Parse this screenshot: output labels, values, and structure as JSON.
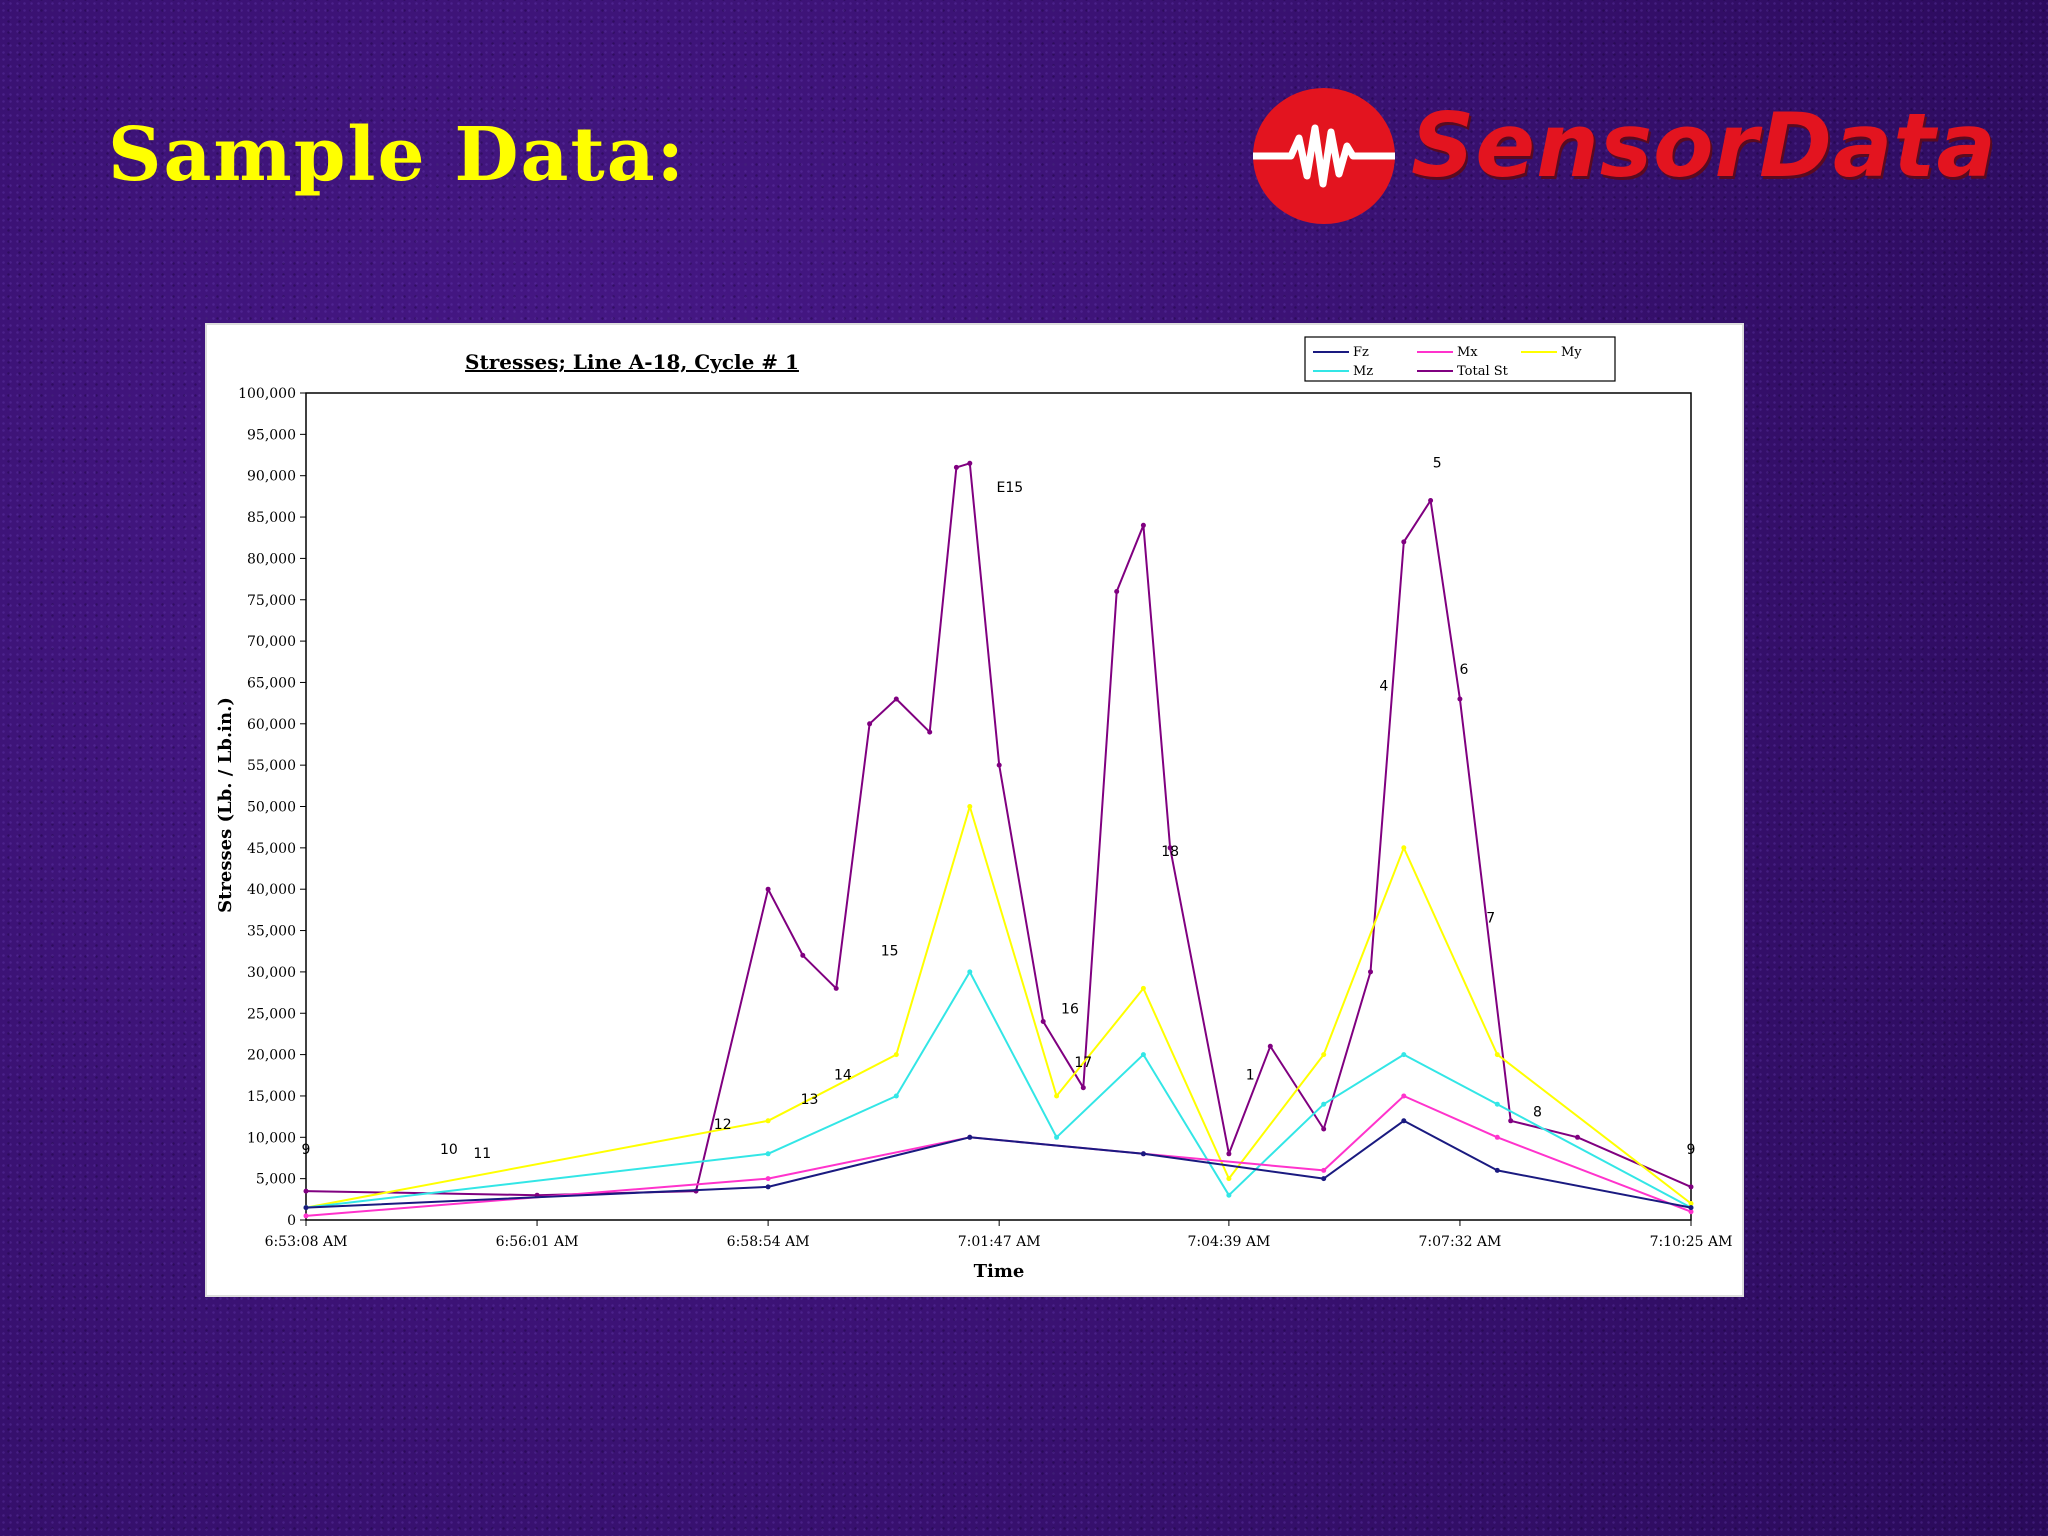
{
  "slide": {
    "title": "Sample Data:"
  },
  "logo": {
    "text": "SensorData",
    "color": "#e3141f"
  },
  "chart_data": {
    "type": "line",
    "title": "Stresses; Line A-18, Cycle # 1",
    "xlabel": "Time",
    "ylabel": "Stresses (Lb. / Lb.in.)",
    "ylim": [
      0,
      100000
    ],
    "xlim_seconds_label": [
      "6:53:08 AM",
      "7:10:25 AM"
    ],
    "yticks": [
      "0",
      "5,000",
      "10,000",
      "15,000",
      "20,000",
      "25,000",
      "30,000",
      "35,000",
      "40,000",
      "45,000",
      "50,000",
      "55,000",
      "60,000",
      "65,000",
      "70,000",
      "75,000",
      "80,000",
      "85,000",
      "90,000",
      "95,000",
      "100,000"
    ],
    "xticks": [
      "6:53:08 AM",
      "6:56:01 AM",
      "6:58:54 AM",
      "7:01:47 AM",
      "7:04:39 AM",
      "7:07:32 AM",
      "7:10:25 AM"
    ],
    "legend": {
      "position": "top-right",
      "entries": [
        {
          "name": "Fz",
          "color": "#1a1a80"
        },
        {
          "name": "Mx",
          "color": "#ff33cc"
        },
        {
          "name": "My",
          "color": "#ffff00"
        },
        {
          "name": "Mz",
          "color": "#33e6e6"
        },
        {
          "name": "Total St",
          "color": "#800080"
        }
      ]
    },
    "grid": false,
    "series": [
      {
        "name": "Total St",
        "color": "#800080",
        "x": [
          "6:53:08 AM",
          "6:56:01 AM",
          "6:58:00 AM",
          "6:58:54 AM",
          "6:59:20 AM",
          "6:59:45 AM",
          "7:00:10 AM",
          "7:00:30 AM",
          "7:00:55 AM",
          "7:01:15 AM",
          "7:01:25 AM",
          "7:01:47 AM",
          "7:02:20 AM",
          "7:02:50 AM",
          "7:03:15 AM",
          "7:03:35 AM",
          "7:03:55 AM",
          "7:04:39 AM",
          "7:05:10 AM",
          "7:05:50 AM",
          "7:06:25 AM",
          "7:06:50 AM",
          "7:07:10 AM",
          "7:07:32 AM",
          "7:08:10 AM",
          "7:09:00 AM",
          "7:10:25 AM"
        ],
        "y": [
          3500,
          3000,
          3500,
          40000,
          32000,
          28000,
          60000,
          63000,
          59000,
          91000,
          91500,
          55000,
          24000,
          16000,
          76000,
          84000,
          45000,
          8000,
          21000,
          11000,
          30000,
          82000,
          87000,
          63000,
          12000,
          10000,
          4000
        ]
      },
      {
        "name": "My",
        "color": "#ffff00",
        "x": [
          "6:53:08 AM",
          "6:58:54 AM",
          "7:00:30 AM",
          "7:01:25 AM",
          "7:02:30 AM",
          "7:03:35 AM",
          "7:04:39 AM",
          "7:05:50 AM",
          "7:06:50 AM",
          "7:08:00 AM",
          "7:10:25 AM"
        ],
        "y": [
          1500,
          12000,
          20000,
          50000,
          15000,
          28000,
          5000,
          20000,
          45000,
          20000,
          2000
        ]
      },
      {
        "name": "Mz",
        "color": "#33e6e6",
        "x": [
          "6:53:08 AM",
          "6:58:54 AM",
          "7:00:30 AM",
          "7:01:25 AM",
          "7:02:30 AM",
          "7:03:35 AM",
          "7:04:39 AM",
          "7:05:50 AM",
          "7:06:50 AM",
          "7:08:00 AM",
          "7:10:25 AM"
        ],
        "y": [
          1500,
          8000,
          15000,
          30000,
          10000,
          20000,
          3000,
          14000,
          20000,
          14000,
          1500
        ]
      },
      {
        "name": "Mx",
        "color": "#ff33cc",
        "x": [
          "6:53:08 AM",
          "6:58:54 AM",
          "7:01:25 AM",
          "7:03:35 AM",
          "7:05:50 AM",
          "7:06:50 AM",
          "7:08:00 AM",
          "7:10:25 AM"
        ],
        "y": [
          500,
          5000,
          10000,
          8000,
          6000,
          15000,
          10000,
          1000
        ]
      },
      {
        "name": "Fz",
        "color": "#1a1a80",
        "x": [
          "6:53:08 AM",
          "6:58:54 AM",
          "7:01:25 AM",
          "7:03:35 AM",
          "7:05:50 AM",
          "7:06:50 AM",
          "7:08:00 AM",
          "7:10:25 AM"
        ],
        "y": [
          1500,
          4000,
          10000,
          8000,
          5000,
          12000,
          6000,
          1500
        ]
      }
    ],
    "annotations": [
      {
        "text": "9",
        "x": "6:53:08 AM",
        "y": 8000
      },
      {
        "text": "10",
        "x": "6:54:55 AM",
        "y": 8000
      },
      {
        "text": "11",
        "x": "6:55:20 AM",
        "y": 7500
      },
      {
        "text": "12",
        "x": "6:58:20 AM",
        "y": 11000
      },
      {
        "text": "13",
        "x": "6:59:25 AM",
        "y": 14000
      },
      {
        "text": "14",
        "x": "6:59:50 AM",
        "y": 17000
      },
      {
        "text": "15",
        "x": "7:00:25 AM",
        "y": 32000
      },
      {
        "text": "E15",
        "x": "7:01:55 AM",
        "y": 88000
      },
      {
        "text": "16",
        "x": "7:02:40 AM",
        "y": 25000
      },
      {
        "text": "17",
        "x": "7:02:50 AM",
        "y": 18500
      },
      {
        "text": "18",
        "x": "7:03:55 AM",
        "y": 44000
      },
      {
        "text": "1",
        "x": "7:04:55 AM",
        "y": 17000
      },
      {
        "text": "4",
        "x": "7:06:35 AM",
        "y": 64000
      },
      {
        "text": "5",
        "x": "7:07:15 AM",
        "y": 91000
      },
      {
        "text": "6",
        "x": "7:07:35 AM",
        "y": 66000
      },
      {
        "text": "7",
        "x": "7:07:55 AM",
        "y": 36000
      },
      {
        "text": "8",
        "x": "7:08:30 AM",
        "y": 12500
      },
      {
        "text": "9",
        "x": "7:10:25 AM",
        "y": 8000
      }
    ]
  }
}
